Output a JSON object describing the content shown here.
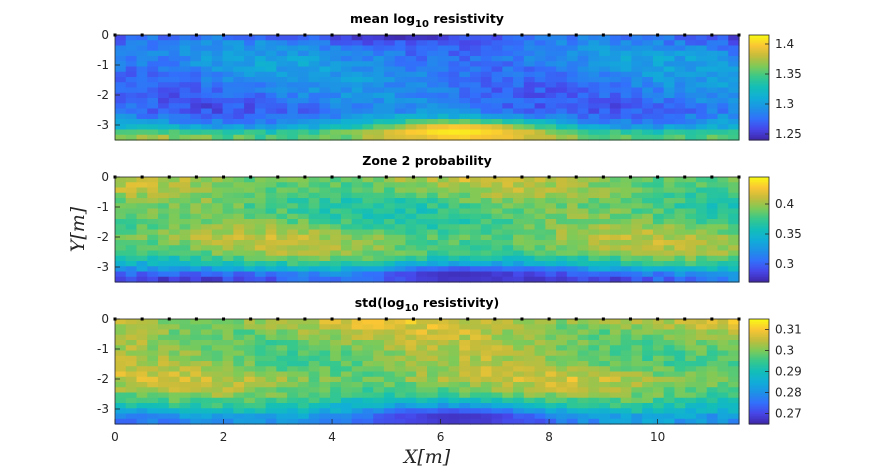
{
  "chart_data": [
    {
      "type": "heatmap",
      "title_base": "mean log",
      "title_sub": "10",
      "title_tail": " resistivity",
      "xlim": [
        0,
        11.5
      ],
      "ylim": [
        -3.5,
        0
      ],
      "yticks": [
        "0",
        "-1",
        "-2",
        "-3"
      ],
      "xticks": [],
      "ylabel": "",
      "xlabel": "",
      "colorbar": {
        "range": [
          1.24,
          1.415
        ],
        "ticks": [
          1.25,
          1.3,
          1.35,
          1.4
        ],
        "tick_labels": [
          "1.25",
          "1.3",
          "1.35",
          "1.4"
        ]
      },
      "profile_by_depth": [
        {
          "depth": 0.0,
          "value": 1.265
        },
        {
          "depth": -0.5,
          "value": 1.285
        },
        {
          "depth": -1.0,
          "value": 1.29
        },
        {
          "depth": -1.5,
          "value": 1.285
        },
        {
          "depth": -2.0,
          "value": 1.28
        },
        {
          "depth": -2.5,
          "value": 1.275
        },
        {
          "depth": -3.0,
          "value": 1.3
        },
        {
          "depth": -3.3,
          "value": 1.36
        }
      ],
      "features": [
        {
          "description": "yellow anomaly",
          "x": 6.3,
          "y": -3.2,
          "value": 1.41
        }
      ]
    },
    {
      "type": "heatmap",
      "title_base": "Zone 2 probability",
      "title_sub": "",
      "title_tail": "",
      "xlim": [
        0,
        11.5
      ],
      "ylim": [
        -3.5,
        0
      ],
      "yticks": [
        "0",
        "-1",
        "-2",
        "-3"
      ],
      "xticks": [],
      "ylabel": "Y[m]",
      "xlabel": "",
      "colorbar": {
        "range": [
          0.27,
          0.445
        ],
        "ticks": [
          0.3,
          0.35,
          0.4
        ],
        "tick_labels": [
          "0.3",
          "0.35",
          "0.4"
        ]
      },
      "profile_by_depth": [
        {
          "depth": 0.0,
          "value": 0.4
        },
        {
          "depth": -0.5,
          "value": 0.39
        },
        {
          "depth": -1.0,
          "value": 0.375
        },
        {
          "depth": -1.5,
          "value": 0.38
        },
        {
          "depth": -2.0,
          "value": 0.395
        },
        {
          "depth": -2.5,
          "value": 0.39
        },
        {
          "depth": -3.0,
          "value": 0.35
        },
        {
          "depth": -3.3,
          "value": 0.3
        }
      ],
      "features": [
        {
          "description": "low probability zone",
          "x": 6.3,
          "y": -3.3,
          "value": 0.275
        }
      ]
    },
    {
      "type": "heatmap",
      "title_base": "std(log",
      "title_sub": "10",
      "title_tail": " resistivity)",
      "xlim": [
        0,
        11.5
      ],
      "ylim": [
        -3.5,
        0
      ],
      "yticks": [
        "0",
        "-1",
        "-2",
        "-3"
      ],
      "xticks": [
        "0",
        "2",
        "4",
        "6",
        "8",
        "10"
      ],
      "ylabel": "",
      "xlabel": "X[m]",
      "colorbar": {
        "range": [
          0.265,
          0.315
        ],
        "ticks": [
          0.27,
          0.28,
          0.29,
          0.3,
          0.31
        ],
        "tick_labels": [
          "0.27",
          "0.28",
          "0.29",
          "0.3",
          "0.31"
        ]
      },
      "profile_by_depth": [
        {
          "depth": 0.0,
          "value": 0.305
        },
        {
          "depth": -0.5,
          "value": 0.302
        },
        {
          "depth": -1.0,
          "value": 0.3
        },
        {
          "depth": -1.5,
          "value": 0.3
        },
        {
          "depth": -2.0,
          "value": 0.303
        },
        {
          "depth": -2.5,
          "value": 0.298
        },
        {
          "depth": -3.0,
          "value": 0.288
        },
        {
          "depth": -3.3,
          "value": 0.278
        }
      ],
      "features": [
        {
          "description": "low std zone",
          "x": 6.3,
          "y": -3.3,
          "value": 0.267
        }
      ]
    }
  ],
  "colors": {
    "parula_low": "#3e26a8",
    "parula_mid": "#13beb8",
    "parula_high": "#f9fb15",
    "axis": "#262626"
  }
}
